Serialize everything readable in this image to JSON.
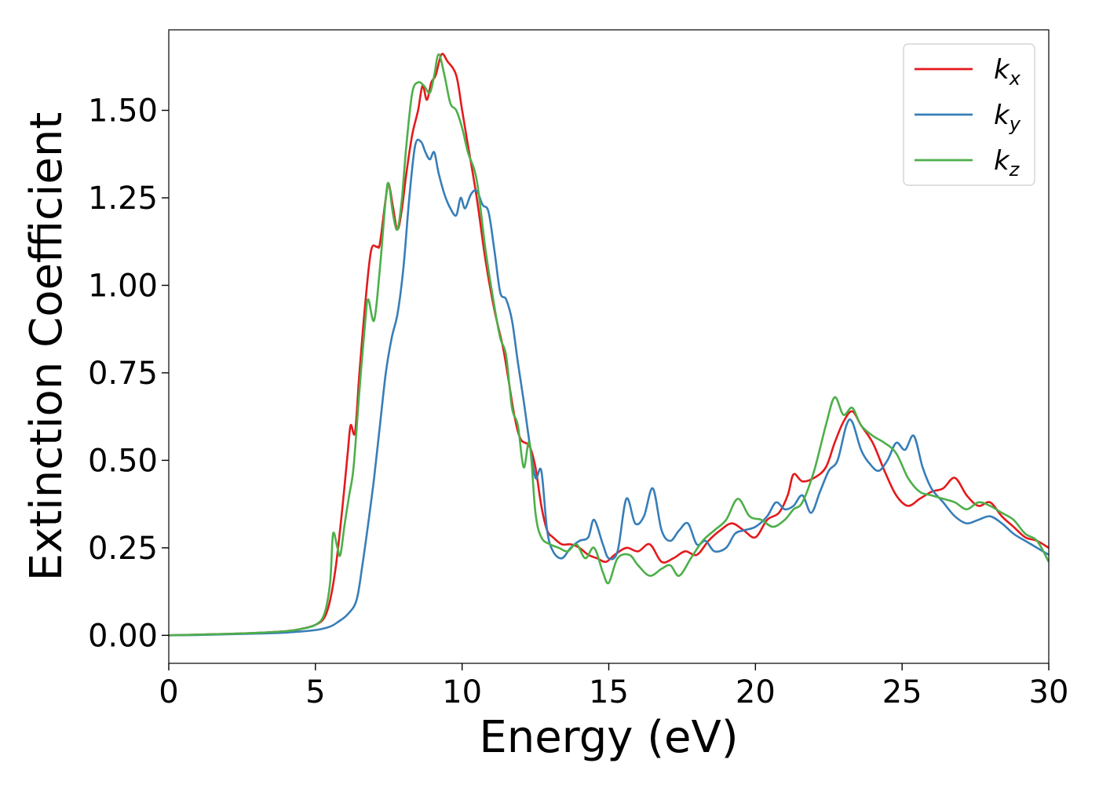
{
  "chart_data": {
    "type": "line",
    "title": "",
    "xlabel": "Energy (eV)",
    "ylabel": "Extinction Coefficient",
    "xlim": [
      0,
      30
    ],
    "ylim": [
      -0.08,
      1.73
    ],
    "xticks": [
      0,
      5,
      10,
      15,
      20,
      25,
      30
    ],
    "yticks": [
      0.0,
      0.25,
      0.5,
      0.75,
      1.0,
      1.25,
      1.5
    ],
    "xtick_labels": [
      "0",
      "5",
      "10",
      "15",
      "20",
      "25",
      "30"
    ],
    "ytick_labels": [
      "0.00",
      "0.25",
      "0.50",
      "0.75",
      "1.00",
      "1.25",
      "1.50"
    ],
    "grid": false,
    "legend": "top-right",
    "series": [
      {
        "name": "k_x",
        "label_main": "k",
        "label_sub": "x",
        "color": "#e41a1c",
        "points": [
          [
            0,
            0
          ],
          [
            1,
            0.002
          ],
          [
            2,
            0.004
          ],
          [
            3,
            0.007
          ],
          [
            4,
            0.012
          ],
          [
            4.5,
            0.018
          ],
          [
            5,
            0.03
          ],
          [
            5.3,
            0.05
          ],
          [
            5.5,
            0.1
          ],
          [
            5.7,
            0.2
          ],
          [
            5.9,
            0.35
          ],
          [
            6.1,
            0.52
          ],
          [
            6.2,
            0.6
          ],
          [
            6.35,
            0.58
          ],
          [
            6.5,
            0.75
          ],
          [
            6.7,
            0.95
          ],
          [
            6.9,
            1.1
          ],
          [
            7.1,
            1.11
          ],
          [
            7.2,
            1.12
          ],
          [
            7.4,
            1.25
          ],
          [
            7.5,
            1.29
          ],
          [
            7.65,
            1.22
          ],
          [
            7.8,
            1.16
          ],
          [
            7.95,
            1.22
          ],
          [
            8.1,
            1.32
          ],
          [
            8.3,
            1.43
          ],
          [
            8.5,
            1.5
          ],
          [
            8.65,
            1.57
          ],
          [
            8.8,
            1.53
          ],
          [
            8.95,
            1.58
          ],
          [
            9.1,
            1.6
          ],
          [
            9.3,
            1.66
          ],
          [
            9.5,
            1.64
          ],
          [
            9.8,
            1.6
          ],
          [
            10.0,
            1.5
          ],
          [
            10.2,
            1.4
          ],
          [
            10.5,
            1.25
          ],
          [
            10.8,
            1.07
          ],
          [
            11.1,
            0.93
          ],
          [
            11.4,
            0.82
          ],
          [
            11.6,
            0.72
          ],
          [
            11.8,
            0.62
          ],
          [
            12.0,
            0.56
          ],
          [
            12.3,
            0.54
          ],
          [
            12.5,
            0.48
          ],
          [
            12.7,
            0.37
          ],
          [
            12.9,
            0.3
          ],
          [
            13.1,
            0.28
          ],
          [
            13.4,
            0.26
          ],
          [
            13.7,
            0.26
          ],
          [
            14.0,
            0.25
          ],
          [
            14.3,
            0.23
          ],
          [
            14.6,
            0.22
          ],
          [
            14.9,
            0.21
          ],
          [
            15.2,
            0.23
          ],
          [
            15.6,
            0.25
          ],
          [
            16.0,
            0.24
          ],
          [
            16.4,
            0.26
          ],
          [
            16.8,
            0.21
          ],
          [
            17.2,
            0.22
          ],
          [
            17.6,
            0.24
          ],
          [
            18.0,
            0.23
          ],
          [
            18.4,
            0.27
          ],
          [
            18.8,
            0.3
          ],
          [
            19.2,
            0.32
          ],
          [
            19.6,
            0.3
          ],
          [
            20.0,
            0.28
          ],
          [
            20.4,
            0.33
          ],
          [
            20.8,
            0.35
          ],
          [
            21.1,
            0.4
          ],
          [
            21.3,
            0.46
          ],
          [
            21.6,
            0.44
          ],
          [
            22.0,
            0.45
          ],
          [
            22.4,
            0.48
          ],
          [
            22.7,
            0.55
          ],
          [
            23.0,
            0.61
          ],
          [
            23.3,
            0.64
          ],
          [
            23.6,
            0.6
          ],
          [
            24.0,
            0.55
          ],
          [
            24.4,
            0.47
          ],
          [
            24.8,
            0.4
          ],
          [
            25.2,
            0.37
          ],
          [
            25.6,
            0.39
          ],
          [
            26.0,
            0.41
          ],
          [
            26.4,
            0.42
          ],
          [
            26.8,
            0.45
          ],
          [
            27.2,
            0.4
          ],
          [
            27.6,
            0.37
          ],
          [
            28.0,
            0.38
          ],
          [
            28.4,
            0.34
          ],
          [
            28.8,
            0.31
          ],
          [
            29.2,
            0.28
          ],
          [
            29.6,
            0.27
          ],
          [
            30,
            0.25
          ]
        ]
      },
      {
        "name": "k_y",
        "label_main": "k",
        "label_sub": "y",
        "color": "#377eb8",
        "points": [
          [
            0,
            0
          ],
          [
            1,
            0.001
          ],
          [
            2,
            0.003
          ],
          [
            3,
            0.005
          ],
          [
            4,
            0.008
          ],
          [
            5,
            0.015
          ],
          [
            5.5,
            0.025
          ],
          [
            5.8,
            0.04
          ],
          [
            6.1,
            0.06
          ],
          [
            6.4,
            0.1
          ],
          [
            6.6,
            0.2
          ],
          [
            6.8,
            0.32
          ],
          [
            7.0,
            0.45
          ],
          [
            7.2,
            0.6
          ],
          [
            7.4,
            0.75
          ],
          [
            7.6,
            0.85
          ],
          [
            7.8,
            0.92
          ],
          [
            8.0,
            1.05
          ],
          [
            8.2,
            1.25
          ],
          [
            8.4,
            1.4
          ],
          [
            8.6,
            1.41
          ],
          [
            8.75,
            1.38
          ],
          [
            8.9,
            1.36
          ],
          [
            9.05,
            1.38
          ],
          [
            9.2,
            1.32
          ],
          [
            9.4,
            1.26
          ],
          [
            9.6,
            1.22
          ],
          [
            9.8,
            1.2
          ],
          [
            9.95,
            1.25
          ],
          [
            10.1,
            1.22
          ],
          [
            10.3,
            1.26
          ],
          [
            10.5,
            1.27
          ],
          [
            10.7,
            1.23
          ],
          [
            10.9,
            1.21
          ],
          [
            11.1,
            1.1
          ],
          [
            11.3,
            0.98
          ],
          [
            11.5,
            0.96
          ],
          [
            11.7,
            0.9
          ],
          [
            11.9,
            0.78
          ],
          [
            12.1,
            0.67
          ],
          [
            12.3,
            0.55
          ],
          [
            12.5,
            0.45
          ],
          [
            12.7,
            0.47
          ],
          [
            12.9,
            0.3
          ],
          [
            13.1,
            0.24
          ],
          [
            13.4,
            0.22
          ],
          [
            13.7,
            0.25
          ],
          [
            14.0,
            0.27
          ],
          [
            14.3,
            0.28
          ],
          [
            14.5,
            0.33
          ],
          [
            14.8,
            0.26
          ],
          [
            15.0,
            0.22
          ],
          [
            15.3,
            0.24
          ],
          [
            15.6,
            0.39
          ],
          [
            15.9,
            0.32
          ],
          [
            16.2,
            0.34
          ],
          [
            16.5,
            0.42
          ],
          [
            16.8,
            0.3
          ],
          [
            17.1,
            0.27
          ],
          [
            17.4,
            0.3
          ],
          [
            17.7,
            0.32
          ],
          [
            18.0,
            0.26
          ],
          [
            18.3,
            0.27
          ],
          [
            18.6,
            0.24
          ],
          [
            19.0,
            0.25
          ],
          [
            19.3,
            0.29
          ],
          [
            19.6,
            0.3
          ],
          [
            20.0,
            0.31
          ],
          [
            20.4,
            0.34
          ],
          [
            20.7,
            0.38
          ],
          [
            21.0,
            0.36
          ],
          [
            21.3,
            0.37
          ],
          [
            21.6,
            0.4
          ],
          [
            21.9,
            0.35
          ],
          [
            22.2,
            0.41
          ],
          [
            22.5,
            0.47
          ],
          [
            22.8,
            0.5
          ],
          [
            23.1,
            0.6
          ],
          [
            23.3,
            0.61
          ],
          [
            23.6,
            0.53
          ],
          [
            23.9,
            0.49
          ],
          [
            24.2,
            0.47
          ],
          [
            24.5,
            0.5
          ],
          [
            24.8,
            0.55
          ],
          [
            25.1,
            0.53
          ],
          [
            25.4,
            0.57
          ],
          [
            25.7,
            0.48
          ],
          [
            26.0,
            0.42
          ],
          [
            26.4,
            0.38
          ],
          [
            26.8,
            0.34
          ],
          [
            27.2,
            0.32
          ],
          [
            27.6,
            0.33
          ],
          [
            28.0,
            0.34
          ],
          [
            28.4,
            0.32
          ],
          [
            28.8,
            0.29
          ],
          [
            29.2,
            0.27
          ],
          [
            29.6,
            0.25
          ],
          [
            30,
            0.23
          ]
        ]
      },
      {
        "name": "k_z",
        "label_main": "k",
        "label_sub": "z",
        "color": "#4daf4a",
        "points": [
          [
            0,
            0
          ],
          [
            1,
            0.002
          ],
          [
            2,
            0.004
          ],
          [
            3,
            0.007
          ],
          [
            4,
            0.012
          ],
          [
            4.5,
            0.018
          ],
          [
            5,
            0.03
          ],
          [
            5.3,
            0.06
          ],
          [
            5.5,
            0.15
          ],
          [
            5.6,
            0.29
          ],
          [
            5.75,
            0.25
          ],
          [
            5.85,
            0.23
          ],
          [
            6.0,
            0.32
          ],
          [
            6.15,
            0.4
          ],
          [
            6.3,
            0.48
          ],
          [
            6.5,
            0.7
          ],
          [
            6.7,
            0.9
          ],
          [
            6.8,
            0.96
          ],
          [
            7.0,
            0.9
          ],
          [
            7.2,
            1.05
          ],
          [
            7.4,
            1.25
          ],
          [
            7.5,
            1.29
          ],
          [
            7.65,
            1.2
          ],
          [
            7.8,
            1.16
          ],
          [
            7.95,
            1.25
          ],
          [
            8.1,
            1.4
          ],
          [
            8.3,
            1.55
          ],
          [
            8.5,
            1.58
          ],
          [
            8.7,
            1.57
          ],
          [
            8.9,
            1.55
          ],
          [
            9.05,
            1.6
          ],
          [
            9.2,
            1.66
          ],
          [
            9.4,
            1.6
          ],
          [
            9.6,
            1.52
          ],
          [
            9.8,
            1.5
          ],
          [
            10.0,
            1.45
          ],
          [
            10.2,
            1.38
          ],
          [
            10.5,
            1.3
          ],
          [
            10.8,
            1.1
          ],
          [
            11.1,
            0.94
          ],
          [
            11.3,
            0.85
          ],
          [
            11.5,
            0.8
          ],
          [
            11.7,
            0.65
          ],
          [
            11.9,
            0.6
          ],
          [
            12.1,
            0.48
          ],
          [
            12.3,
            0.55
          ],
          [
            12.5,
            0.35
          ],
          [
            12.7,
            0.28
          ],
          [
            13.0,
            0.26
          ],
          [
            13.3,
            0.25
          ],
          [
            13.6,
            0.24
          ],
          [
            13.9,
            0.26
          ],
          [
            14.2,
            0.22
          ],
          [
            14.5,
            0.25
          ],
          [
            14.8,
            0.18
          ],
          [
            15.0,
            0.15
          ],
          [
            15.3,
            0.22
          ],
          [
            15.7,
            0.23
          ],
          [
            16.0,
            0.2
          ],
          [
            16.4,
            0.17
          ],
          [
            16.8,
            0.19
          ],
          [
            17.1,
            0.2
          ],
          [
            17.4,
            0.17
          ],
          [
            17.8,
            0.22
          ],
          [
            18.2,
            0.27
          ],
          [
            18.6,
            0.3
          ],
          [
            19.0,
            0.33
          ],
          [
            19.4,
            0.39
          ],
          [
            19.8,
            0.34
          ],
          [
            20.2,
            0.33
          ],
          [
            20.6,
            0.31
          ],
          [
            21.0,
            0.33
          ],
          [
            21.3,
            0.36
          ],
          [
            21.6,
            0.38
          ],
          [
            22.0,
            0.47
          ],
          [
            22.4,
            0.6
          ],
          [
            22.7,
            0.68
          ],
          [
            23.0,
            0.63
          ],
          [
            23.3,
            0.65
          ],
          [
            23.6,
            0.6
          ],
          [
            24.0,
            0.57
          ],
          [
            24.4,
            0.55
          ],
          [
            24.8,
            0.52
          ],
          [
            25.2,
            0.45
          ],
          [
            25.6,
            0.41
          ],
          [
            26.0,
            0.4
          ],
          [
            26.4,
            0.39
          ],
          [
            26.8,
            0.38
          ],
          [
            27.2,
            0.36
          ],
          [
            27.6,
            0.38
          ],
          [
            28.0,
            0.37
          ],
          [
            28.4,
            0.35
          ],
          [
            28.8,
            0.33
          ],
          [
            29.2,
            0.29
          ],
          [
            29.6,
            0.27
          ],
          [
            30,
            0.21
          ]
        ]
      }
    ]
  }
}
